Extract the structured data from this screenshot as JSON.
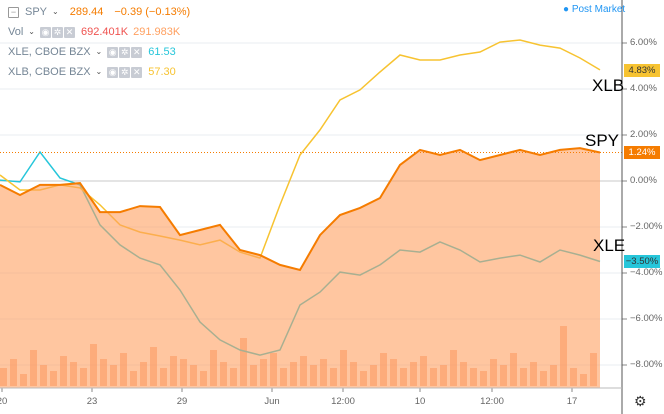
{
  "legend": {
    "spy": {
      "symbol": "SPY",
      "price": "289.44",
      "change": "−0.39 (−0.13%)"
    },
    "vol": {
      "label": "Vol",
      "value1": "692.401K",
      "value2": "291.983K"
    },
    "xle": {
      "symbol": "XLE, CBOE BZX",
      "value": "61.53"
    },
    "xlb": {
      "symbol": "XLB, CBOE BZX",
      "value": "57.30"
    }
  },
  "post_market": "Post Market",
  "annotations": {
    "xlb": "XLB",
    "spy": "SPY",
    "xle": "XLE"
  },
  "price_tags": {
    "xlb": "4.83%",
    "spy": "1.24%",
    "xle": "−3.50%"
  },
  "colors": {
    "spy": "#f57c00",
    "spy_area": "#ffa060",
    "xlb": "#f7c331",
    "xle": "#26c6da",
    "volume": "#f5895a",
    "post_market": "#2196f3"
  },
  "icons": {
    "collapse": "minus-square-icon",
    "eye": "eye-icon",
    "settings": "gear-icon",
    "remove": "close-icon",
    "chart_settings": "gear-icon"
  },
  "chart_data": {
    "type": "line",
    "y_axis": {
      "unit": "%",
      "ylim": [
        -9,
        7.5
      ],
      "ticks": [
        "6.00%",
        "4.00%",
        "2.00%",
        "0.00%",
        "−2.00%",
        "−4.00%",
        "−6.00%",
        "−8.00%"
      ],
      "tick_values": [
        6,
        4,
        2,
        0,
        -2,
        -4,
        -6,
        -8
      ]
    },
    "x_axis": {
      "ticks": [
        "20",
        "23",
        "29",
        "Jun",
        "12:00",
        "10",
        "12:00",
        "17"
      ]
    },
    "grid": true,
    "series": [
      {
        "name": "SPY",
        "style": "area",
        "values": [
          -0.17,
          -0.61,
          -0.17,
          -0.17,
          -0.09,
          -1.35,
          -1.35,
          -1.09,
          -1.13,
          -2.35,
          -2.13,
          -1.91,
          -3.0,
          -3.22,
          -3.65,
          -3.87,
          -2.35,
          -1.48,
          -1.17,
          -0.74,
          0.7,
          1.35,
          1.13,
          1.35,
          0.91,
          1.13,
          1.35,
          1.13,
          1.35,
          1.43,
          1.24
        ]
      },
      {
        "name": "XLB",
        "style": "line",
        "values": [
          0.26,
          -0.39,
          -0.39,
          -0.17,
          -0.3,
          -1.04,
          -1.91,
          -2.22,
          -2.39,
          -2.57,
          -2.78,
          -2.57,
          -3.09,
          -3.35,
          -1.04,
          1.13,
          2.22,
          3.52,
          3.96,
          4.74,
          5.48,
          5.26,
          5.26,
          5.48,
          5.61,
          6.04,
          6.13,
          5.91,
          5.78,
          5.35,
          4.83
        ]
      },
      {
        "name": "XLE",
        "style": "line",
        "values": [
          0.04,
          -0.04,
          1.26,
          0.13,
          -0.17,
          -1.91,
          -2.78,
          -3.35,
          -3.65,
          -4.74,
          -6.13,
          -6.91,
          -7.35,
          -7.57,
          -7.35,
          -5.39,
          -4.83,
          -3.96,
          -4.09,
          -3.65,
          -3.0,
          -3.09,
          -2.65,
          -3.0,
          -3.52,
          -3.35,
          -3.22,
          -3.52,
          -3.0,
          -3.22,
          -3.5
        ]
      }
    ],
    "volume_relative": [
      30,
      45,
      20,
      60,
      35,
      25,
      50,
      40,
      30,
      70,
      45,
      35,
      55,
      25,
      40,
      65,
      30,
      50,
      45,
      35,
      25,
      60,
      40,
      30,
      80,
      35,
      45,
      55,
      30,
      40,
      50,
      35,
      45,
      30,
      60,
      40,
      25,
      35,
      55,
      45,
      30,
      40,
      50,
      30,
      35,
      60,
      40,
      30,
      25,
      45,
      35,
      55,
      30,
      40,
      25,
      35,
      100,
      30,
      20,
      55
    ]
  }
}
